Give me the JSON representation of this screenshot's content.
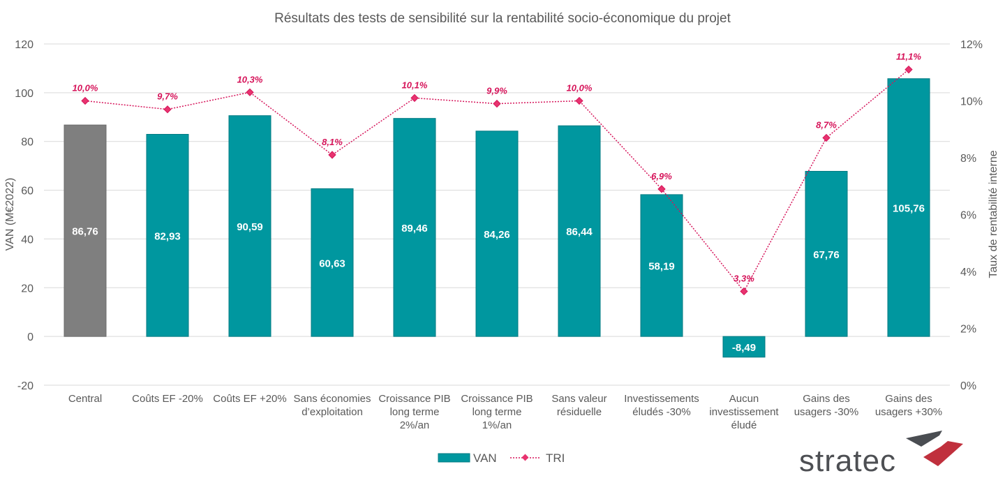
{
  "chart_data": {
    "type": "bar",
    "title": "Résultats des tests de sensibilité sur la rentabilité socio-économique du projet",
    "ylabel": "VAN (M€2022)",
    "y2label": "Taux de rentabilité interne",
    "ylim": [
      -20,
      120
    ],
    "yticks": [
      "-20",
      "0",
      "20",
      "40",
      "60",
      "80",
      "100",
      "120"
    ],
    "y2lim": [
      0,
      12
    ],
    "y2ticks": [
      "0%",
      "2%",
      "4%",
      "6%",
      "8%",
      "10%",
      "12%"
    ],
    "grid": true,
    "legend_position": "bottom",
    "categories": [
      [
        "Central"
      ],
      [
        "Coûts EF -20%"
      ],
      [
        "Coûts EF +20%"
      ],
      [
        "Sans économies",
        "d’exploitation"
      ],
      [
        "Croissance PIB",
        "long terme",
        "2%/an"
      ],
      [
        "Croissance PIB",
        "long terme",
        "1%/an"
      ],
      [
        "Sans valeur",
        "résiduelle"
      ],
      [
        "Investissements",
        "éludés -30%"
      ],
      [
        "Aucun",
        "investissement",
        "éludé"
      ],
      [
        "Gains des",
        "usagers -30%"
      ],
      [
        "Gains des",
        "usagers +30%"
      ]
    ],
    "series": [
      {
        "name": "VAN",
        "type": "bar",
        "values": [
          86.76,
          82.93,
          90.59,
          60.63,
          89.46,
          84.26,
          86.44,
          58.19,
          -8.49,
          67.76,
          105.76
        ],
        "labels": [
          "86,76",
          "82,93",
          "90,59",
          "60,63",
          "89,46",
          "84,26",
          "86,44",
          "58,19",
          "-8,49",
          "67,76",
          "105,76"
        ],
        "color": "#00979f",
        "highlight_color": "#7f7f7f"
      },
      {
        "name": "TRI",
        "type": "line",
        "axis": "right",
        "values": [
          10.0,
          9.7,
          10.3,
          8.1,
          10.1,
          9.9,
          10.0,
          6.9,
          3.3,
          8.7,
          11.1
        ],
        "labels": [
          "10,0%",
          "9,7%",
          "10,3%",
          "8,1%",
          "10,1%",
          "9,9%",
          "10,0%",
          "6,9%",
          "3,3%",
          "8,7%",
          "11,1%"
        ],
        "color": "#d6145a"
      }
    ]
  },
  "logo": {
    "text": "stratec"
  }
}
